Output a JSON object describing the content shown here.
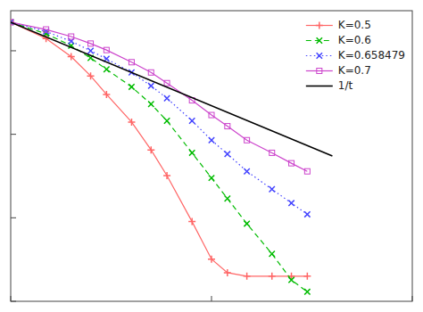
{
  "chart_data": {
    "type": "line",
    "log": true,
    "grid": false,
    "legend": "upper right",
    "tick_labels": false,
    "xlim": [
      1,
      100
    ],
    "ylim": [
      0.001,
      3.019951720402016
    ],
    "xticks": [
      1,
      10,
      100
    ],
    "yticks": [
      0.001,
      0.01,
      0.1,
      1
    ],
    "series": [
      {
        "name": "K=0.5",
        "color": "#ff6666",
        "line_style": "solid",
        "marker": "plus",
        "x": [
          1.0,
          1.5,
          2.0,
          2.5,
          3.0,
          4.0,
          5.0,
          6.0,
          8.0,
          10.0,
          12.0,
          15.0,
          20.0,
          25.0,
          30.0
        ],
        "values": [
          2.2,
          1.4,
          0.85,
          0.5,
          0.3,
          0.14,
          0.065,
          0.032,
          0.009,
          0.0032,
          0.0022,
          0.002,
          0.002,
          0.002,
          0.002
        ]
      },
      {
        "name": "K=0.6",
        "color": "#00bb00",
        "line_style": "dashed",
        "marker": "cross",
        "x": [
          1.0,
          1.5,
          2.0,
          2.5,
          3.0,
          4.0,
          5.0,
          6.0,
          8.0,
          10.0,
          12.0,
          15.0,
          20.0,
          25.0,
          30.0
        ],
        "values": [
          2.2,
          1.6,
          1.15,
          0.82,
          0.6,
          0.37,
          0.23,
          0.145,
          0.06,
          0.03,
          0.017,
          0.0085,
          0.0037,
          0.0018,
          0.0013
        ]
      },
      {
        "name": "K=0.658479",
        "color": "#4444ff",
        "line_style": "dotted",
        "marker": "cross",
        "x": [
          1.0,
          1.5,
          2.0,
          2.5,
          3.0,
          4.0,
          5.0,
          6.0,
          8.0,
          10.0,
          12.0,
          15.0,
          20.0,
          25.0,
          30.0
        ],
        "values": [
          2.2,
          1.7,
          1.3,
          1.0,
          0.8,
          0.55,
          0.38,
          0.27,
          0.145,
          0.085,
          0.058,
          0.036,
          0.022,
          0.015,
          0.011
        ]
      },
      {
        "name": "K=0.7",
        "color": "#cc44cc",
        "line_style": "solid",
        "marker": "square",
        "x": [
          1.0,
          1.5,
          2.0,
          2.5,
          3.0,
          4.0,
          5.0,
          6.0,
          8.0,
          10.0,
          12.0,
          15.0,
          20.0,
          25.0,
          30.0
        ],
        "values": [
          2.2,
          1.8,
          1.48,
          1.22,
          1.02,
          0.73,
          0.55,
          0.41,
          0.255,
          0.17,
          0.125,
          0.085,
          0.06,
          0.045,
          0.036
        ]
      },
      {
        "name": "1/t",
        "color": "#000000",
        "line_style": "solid",
        "x": [
          1.0,
          40.0
        ],
        "values": [
          2.2,
          0.055
        ]
      }
    ]
  }
}
